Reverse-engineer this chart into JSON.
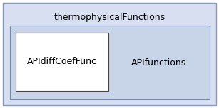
{
  "outer_box_label": "thermophysicalFunctions",
  "outer_bg": "#d8dff0",
  "outer_border": "#8899bb",
  "inner_box_bg": "#c8d4e8",
  "inner_box_border": "#7788aa",
  "child_box_label": "APIdiffCoefFunc",
  "child_box_bg": "#ffffff",
  "child_box_border": "#444444",
  "sibling_label": "APIfunctions",
  "font_color": "#000000",
  "font_size": 9,
  "fig_width": 3.07,
  "fig_height": 1.52,
  "dpi": 100
}
